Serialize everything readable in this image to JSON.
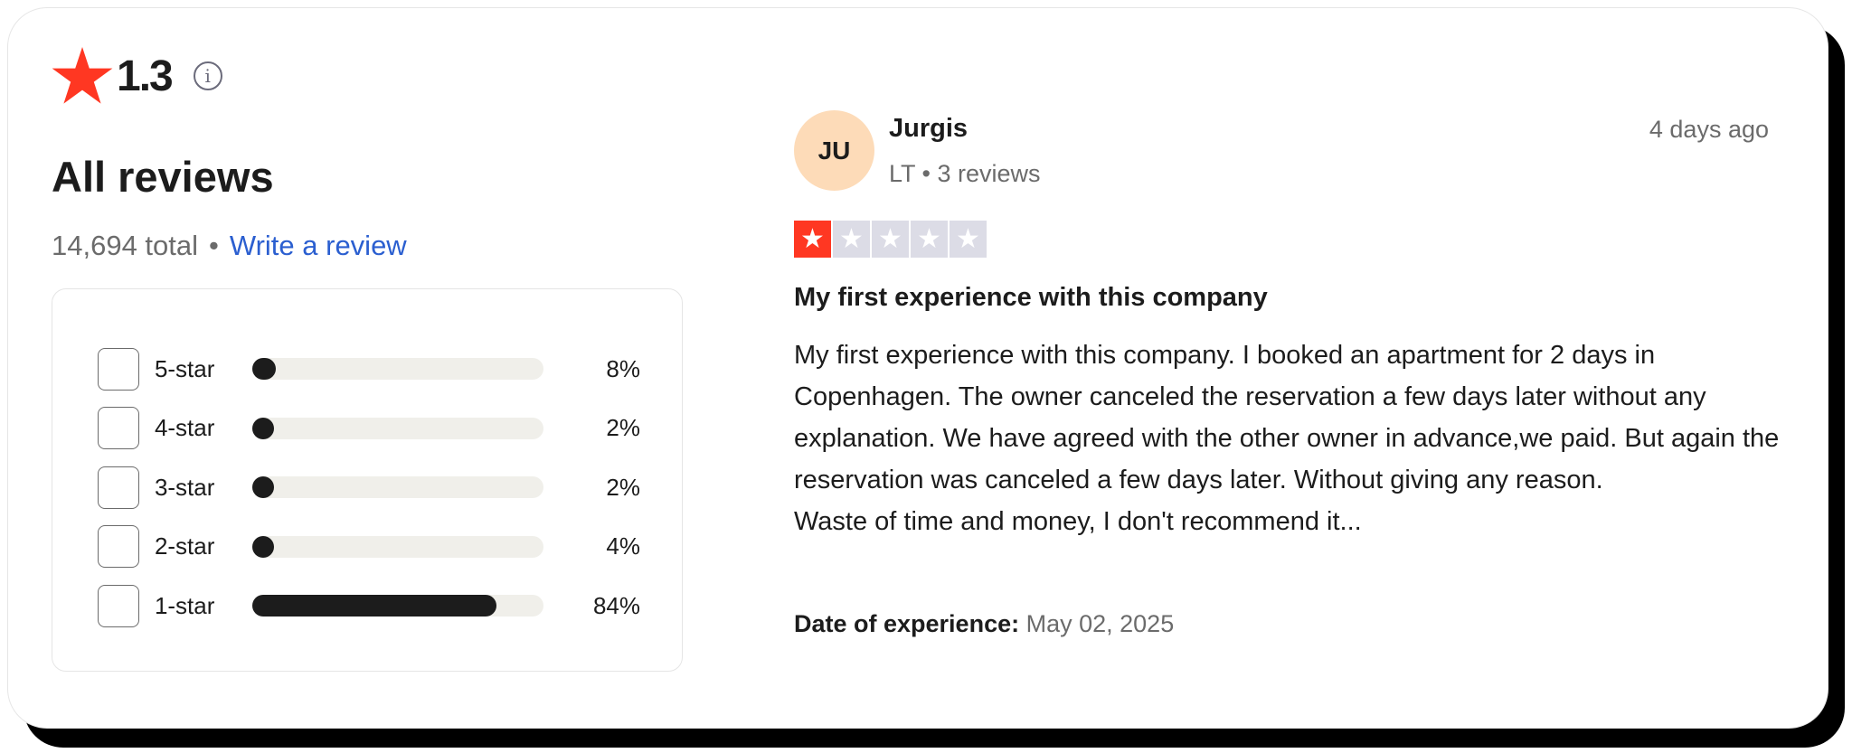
{
  "summary": {
    "rating": "1.3",
    "heading": "All reviews",
    "total": "14,694 total",
    "separator": "•",
    "write_review": "Write a review",
    "star_color": "#ff3722"
  },
  "distribution": [
    {
      "label": "5-star",
      "percent_text": "8%",
      "percent": 8
    },
    {
      "label": "4-star",
      "percent_text": "2%",
      "percent": 2
    },
    {
      "label": "3-star",
      "percent_text": "2%",
      "percent": 2
    },
    {
      "label": "2-star",
      "percent_text": "4%",
      "percent": 4
    },
    {
      "label": "1-star",
      "percent_text": "84%",
      "percent": 84
    }
  ],
  "review": {
    "initials": "JU",
    "name": "Jurgis",
    "meta": "LT • 3 reviews",
    "time": "4 days ago",
    "stars": 1,
    "max_stars": 5,
    "title": "My first experience with this company",
    "body": [
      "My first experience with this company. I booked an apartment for 2 days in Copenhagen. The owner canceled the reservation a few days later without any explanation. We have agreed with the other owner in advance,we paid. But again the reservation was canceled a few days later. Without giving any reason.",
      "Waste of time and money, I don't recommend it..."
    ],
    "date_label": "Date of experience:",
    "date": "May 02, 2025"
  }
}
